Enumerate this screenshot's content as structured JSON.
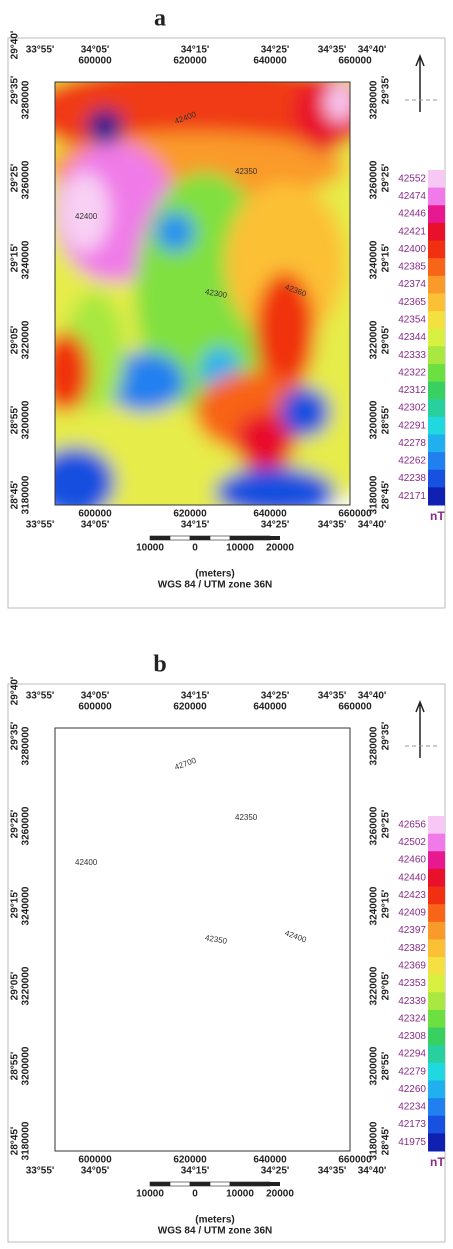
{
  "panels": [
    {
      "label": "a",
      "top_lon": [
        "33°55'",
        "34°05'",
        "34°15'",
        "34°25'",
        "34°35'",
        "34°40'"
      ],
      "top_utm": [
        "600000",
        "620000",
        "640000",
        "660000"
      ],
      "left_lat": [
        "29°40'",
        "29°35'",
        "29°25'",
        "29°15'",
        "29°05'",
        "28°55'",
        "28°45'"
      ],
      "left_utm": [
        "3280000",
        "3260000",
        "3240000",
        "3220000",
        "3200000",
        "3180000"
      ],
      "right_lat": [
        "29°35'",
        "29°25'",
        "29°15'",
        "29°05'",
        "28°55'",
        "28°45'"
      ],
      "right_utm": [
        "3280000",
        "3260000",
        "3240000",
        "3220000",
        "3200000",
        "3180000"
      ],
      "bottom_utm": [
        "600000",
        "620000",
        "640000",
        "660000"
      ],
      "bottom_lon": [
        "33°55'",
        "34°05'",
        "34°15'",
        "34°25'",
        "34°35'",
        "34°40'"
      ],
      "legend": {
        "values": [
          42552,
          42474,
          42446,
          42421,
          42400,
          42385,
          42374,
          42365,
          42354,
          42344,
          42333,
          42322,
          42312,
          42302,
          42291,
          42278,
          42262,
          42238,
          42171
        ],
        "colors": [
          "#f8c8f4",
          "#f07ae8",
          "#e81890",
          "#e8102a",
          "#f03010",
          "#f86418",
          "#fa9a2a",
          "#fcc036",
          "#f4e040",
          "#d8f040",
          "#a8e840",
          "#6ce040",
          "#38d060",
          "#28d0a0",
          "#20d8e0",
          "#20b0f0",
          "#2080f0",
          "#1850e0",
          "#1020b0"
        ],
        "unit": "nT"
      },
      "contour_labels": [
        "42400",
        "42350",
        "42400",
        "42300",
        "42360"
      ],
      "scale": {
        "labels": [
          "10000",
          "0",
          "10000",
          "20000"
        ],
        "unit": "(meters)",
        "projection": "WGS 84 / UTM zone 36N"
      }
    },
    {
      "label": "b",
      "top_lon": [
        "33°55'",
        "34°05'",
        "34°15'",
        "34°25'",
        "34°35'",
        "34°40'"
      ],
      "top_utm": [
        "600000",
        "620000",
        "640000",
        "660000"
      ],
      "left_lat": [
        "29°40'",
        "29°35'",
        "29°25'",
        "29°15'",
        "29°05'",
        "28°55'",
        "28°45'"
      ],
      "left_utm": [
        "3280000",
        "3260000",
        "3240000",
        "3220000",
        "3200000",
        "3180000"
      ],
      "right_lat": [
        "29°35'",
        "29°25'",
        "29°15'",
        "29°05'",
        "28°55'",
        "28°45'"
      ],
      "right_utm": [
        "3280000",
        "3260000",
        "3240000",
        "3220000",
        "3200000",
        "3180000"
      ],
      "bottom_utm": [
        "600000",
        "620000",
        "640000",
        "660000"
      ],
      "bottom_lon": [
        "33°55'",
        "34°05'",
        "34°15'",
        "34°25'",
        "34°35'",
        "34°40'"
      ],
      "legend": {
        "values": [
          42656,
          42502,
          42460,
          42440,
          42423,
          42409,
          42397,
          42382,
          42369,
          42353,
          42339,
          42324,
          42308,
          42294,
          42279,
          42260,
          42234,
          42173,
          41975
        ],
        "colors": [
          "#f8c8f4",
          "#f07ae8",
          "#e81890",
          "#e8102a",
          "#f03010",
          "#f86418",
          "#fa9a2a",
          "#fcc036",
          "#f4e040",
          "#d8f040",
          "#a8e840",
          "#6ce040",
          "#38d060",
          "#28d0a0",
          "#20d8e0",
          "#20b0f0",
          "#2080f0",
          "#1850e0",
          "#1020b0"
        ],
        "unit": "nT"
      },
      "contour_labels": [
        "42700",
        "42350",
        "42400",
        "42350",
        "42400"
      ],
      "scale": {
        "labels": [
          "10000",
          "0",
          "10000",
          "20000"
        ],
        "unit": "(meters)",
        "projection": "WGS 84 / UTM zone 36N"
      }
    }
  ]
}
